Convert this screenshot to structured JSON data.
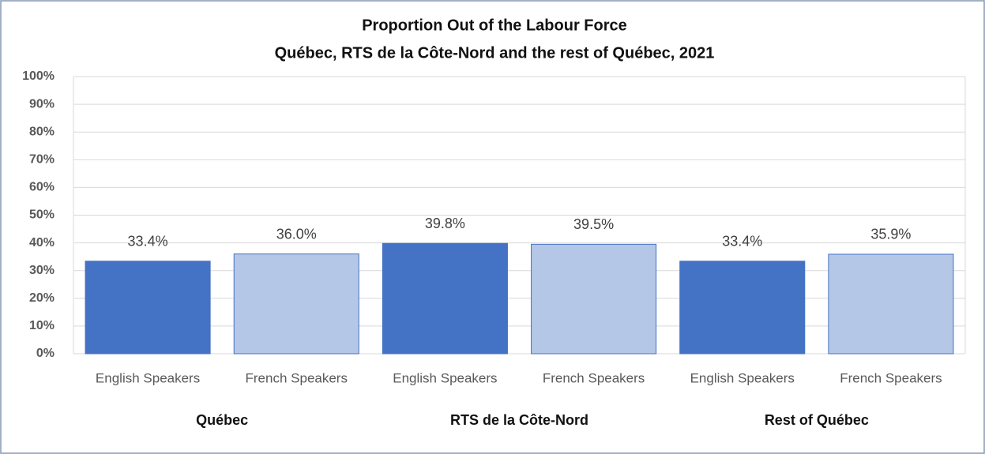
{
  "chart_data": {
    "type": "bar",
    "title": [
      "Proportion Out of the Labour Force",
      "Québec, RTS de la Côte-Nord and the rest of Québec, 2021"
    ],
    "categories": [
      "English Speakers",
      "French Speakers",
      "English Speakers",
      "French Speakers",
      "English Speakers",
      "French Speakers"
    ],
    "groups": [
      "Québec",
      "RTS de la Côte-Nord",
      "Rest of Québec"
    ],
    "values": [
      33.4,
      36.0,
      39.8,
      39.5,
      33.4,
      35.9
    ],
    "value_labels": [
      "33.4%",
      "36.0%",
      "39.8%",
      "39.5%",
      "33.4%",
      "35.9%"
    ],
    "colors": [
      "#4472c4",
      "#b4c7e7",
      "#4472c4",
      "#b4c7e7",
      "#4472c4",
      "#b4c7e7"
    ],
    "ylim": [
      0,
      100
    ],
    "yticks": [
      {
        "value": 0,
        "label": "0%"
      },
      {
        "value": 10,
        "label": "10%"
      },
      {
        "value": 20,
        "label": "20%"
      },
      {
        "value": 30,
        "label": "30%"
      },
      {
        "value": 40,
        "label": "40%"
      },
      {
        "value": 50,
        "label": "50%"
      },
      {
        "value": 60,
        "label": "60%"
      },
      {
        "value": 70,
        "label": "70%"
      },
      {
        "value": 80,
        "label": "80%"
      },
      {
        "value": 90,
        "label": "90%"
      },
      {
        "value": 100,
        "label": "100%"
      }
    ],
    "grid": true
  }
}
